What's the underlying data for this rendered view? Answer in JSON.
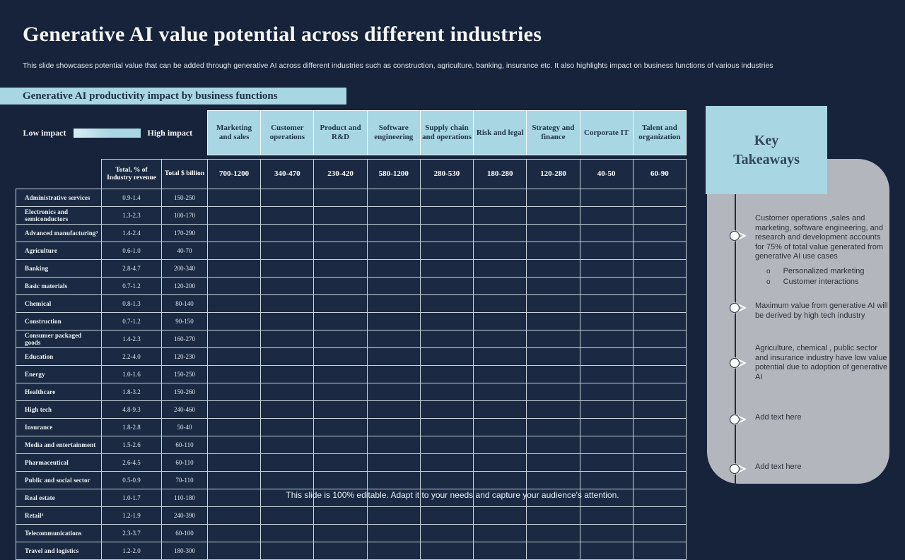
{
  "slide": {
    "title": "Generative AI value potential across different industries",
    "subtitle": "This slide showcases potential value that can be added through generative AI  across different industries such as construction, agriculture, banking, insurance etc. It also highlights impact on business functions of various industries",
    "section_banner": "Generative AI productivity impact by business functions",
    "footer": "This slide is 100% editable. Adapt it to your needs and capture your audience's attention."
  },
  "legend": {
    "low": "Low impact",
    "high": "High impact"
  },
  "table": {
    "function_columns": [
      "Marketing and sales",
      "Customer operations",
      "Product and R&D",
      "Software engineering",
      "Supply chain and operations",
      "Risk and legal",
      "Strategy and finance",
      "Corporate IT",
      "Talent and organization"
    ],
    "row_headers": {
      "pct": "Total, % of Industry revenue",
      "usd": "Total $ billion"
    },
    "function_totals": [
      "700-1200",
      "340-470",
      "230-420",
      "580-1200",
      "280-530",
      "180-280",
      "120-280",
      "40-50",
      "60-90"
    ],
    "industries": [
      {
        "name": "Administrative services",
        "pct": "0.9-1.4",
        "usd": "150-250"
      },
      {
        "name": "Electronics and semiconductors",
        "pct": "1.3-2.3",
        "usd": "100-170"
      },
      {
        "name": "Advanced manufacturing³",
        "pct": "1.4-2.4",
        "usd": "170-290"
      },
      {
        "name": "Agriculture",
        "pct": "0.6-1.0",
        "usd": "40-70"
      },
      {
        "name": "Banking",
        "pct": "2.8-4.7",
        "usd": "200-340"
      },
      {
        "name": "Basic materials",
        "pct": "0.7-1.2",
        "usd": "120-200"
      },
      {
        "name": "Chemical",
        "pct": "0.8-1.3",
        "usd": "80-140"
      },
      {
        "name": "Construction",
        "pct": "0.7-1.2",
        "usd": "90-150"
      },
      {
        "name": "Consumer packaged goods",
        "pct": "1.4-2.3",
        "usd": "160-270"
      },
      {
        "name": "Education",
        "pct": "2.2-4.0",
        "usd": "120-230"
      },
      {
        "name": "Energy",
        "pct": "1.0-1.6",
        "usd": "150-250"
      },
      {
        "name": "Healthcare",
        "pct": "1.8-3.2",
        "usd": "150-260"
      },
      {
        "name": "High tech",
        "pct": "4.8-9.3",
        "usd": "240-460"
      },
      {
        "name": "Insurance",
        "pct": "1.8-2.8",
        "usd": "50-40"
      },
      {
        "name": "Media and entertainment",
        "pct": "1.5-2.6",
        "usd": "60-110"
      },
      {
        "name": "Pharmaceutical",
        "pct": "2.6-4.5",
        "usd": "60-110"
      },
      {
        "name": "Public and social sector",
        "pct": "0.5-0.9",
        "usd": "70-110"
      },
      {
        "name": "Real estate",
        "pct": "1.0-1.7",
        "usd": "110-180"
      },
      {
        "name": "Retail⁴",
        "pct": "1.2-1.9",
        "usd": "240-390"
      },
      {
        "name": "Telecommunications",
        "pct": "2.3-3.7",
        "usd": "60-100"
      },
      {
        "name": "Travel and logistics",
        "pct": "1.2-2.0",
        "usd": "180-300"
      }
    ]
  },
  "key_takeaways": {
    "title": "Key Takeaways",
    "items": [
      {
        "text": "Customer operations ,sales and marketing,  software engineering, and research and development accounts for 75% of total value generated from generative AI use cases",
        "subitems": [
          "Personalized marketing",
          "Customer interactions"
        ],
        "placeholder": false
      },
      {
        "text": "Maximum  value  from generative AI will be derived by high tech  industry",
        "subitems": [],
        "placeholder": false
      },
      {
        "text": "Agriculture, chemical , public sector and insurance industry have low value potential due to adoption  of generative AI",
        "subitems": [],
        "placeholder": false
      },
      {
        "text": "Add text here",
        "subitems": [],
        "placeholder": true
      },
      {
        "text": "Add text here",
        "subitems": [],
        "placeholder": true
      }
    ]
  },
  "colors": {
    "background": "#16233a",
    "accent_blue": "#a9d6e3",
    "panel_gray": "#b4b6bd",
    "table_cell": "#1b2a42",
    "table_border": "#c9d4de"
  }
}
